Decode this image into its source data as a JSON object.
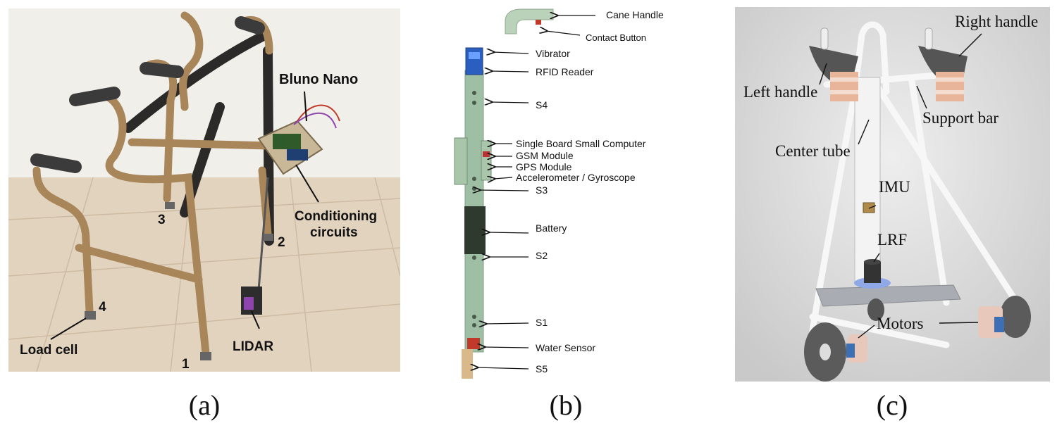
{
  "panel_a": {
    "labels": {
      "bluno_nano": "Bluno Nano",
      "conditioning": "Conditioning",
      "circuits": "circuits",
      "lidar": "LIDAR",
      "load_cell": "Load cell",
      "leg_1": "1",
      "leg_2": "2",
      "leg_3": "3",
      "leg_4": "4"
    },
    "caption": "(a)"
  },
  "panel_b": {
    "labels": {
      "cane_handle": "Cane Handle",
      "contact_button": "Contact Button",
      "vibrator": "Vibrator",
      "rfid_reader": "RFID Reader",
      "s4": "S4",
      "sbc": "Single Board Small Computer",
      "gsm": "GSM Module",
      "gps": "GPS Module",
      "accel": "Accelerometer / Gyroscope",
      "s3": "S3",
      "battery": "Battery",
      "s2": "S2",
      "s1": "S1",
      "water_sensor": "Water Sensor",
      "s5": "S5"
    },
    "caption": "(b)"
  },
  "panel_c": {
    "labels": {
      "right_handle": "Right handle",
      "left_handle": "Left handle",
      "support_bar": "Support bar",
      "center_tube": "Center tube",
      "imu": "IMU",
      "lrf": "LRF",
      "motors": "Motors"
    },
    "caption": "(c)"
  }
}
